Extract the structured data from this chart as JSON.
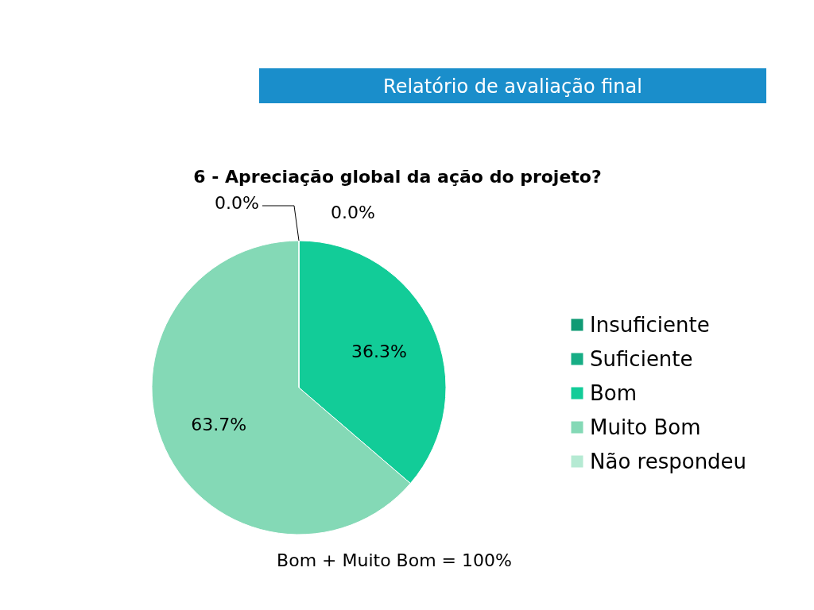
{
  "chart_data": {
    "type": "pie",
    "title": "6 - Apreciação global da ação do projeto?",
    "categories": [
      "Insuficiente",
      "Suficiente",
      "Bom",
      "Muito Bom",
      "Não respondeu"
    ],
    "values": [
      0,
      0,
      36.3,
      63.7,
      0
    ],
    "value_labels": [
      "0.0%",
      "0.0%",
      "36.3%",
      "63.7%",
      null
    ],
    "colors": [
      "#0f9a74",
      "#17ad85",
      "#12cc98",
      "#84d9b6",
      "#b5ead3"
    ],
    "legend": "right",
    "annotations": [
      "Relatório de avaliação final",
      "Bom + Muito Bom = 100%"
    ]
  }
}
